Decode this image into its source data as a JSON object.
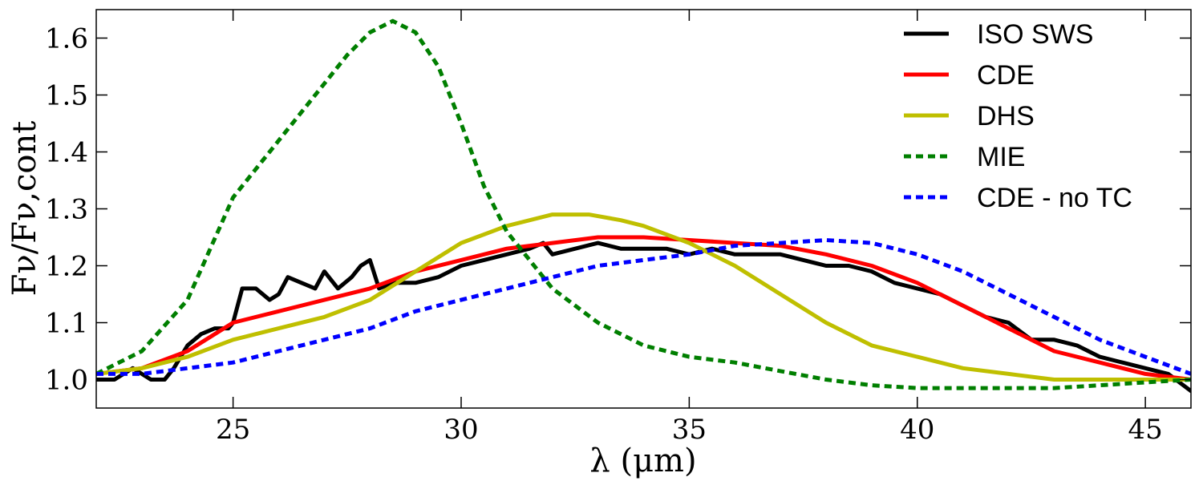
{
  "chart_data": {
    "type": "line",
    "title": "",
    "xlabel": "λ (μm)",
    "ylabel": "Fν/Fν,cont",
    "xlim": [
      22,
      46
    ],
    "ylim": [
      0.95,
      1.65
    ],
    "xticks": [
      25,
      30,
      35,
      40,
      45
    ],
    "yticks": [
      1.0,
      1.1,
      1.2,
      1.3,
      1.4,
      1.5,
      1.6
    ],
    "ytick_labels": [
      "1.0",
      "1.1",
      "1.2",
      "1.3",
      "1.4",
      "1.5",
      "1.6"
    ],
    "legend_position": "top-right",
    "series": [
      {
        "name": "ISO SWS",
        "color": "#000000",
        "style": "solid",
        "x": [
          22.0,
          22.4,
          22.8,
          23.2,
          23.5,
          23.7,
          24.0,
          24.3,
          24.6,
          24.9,
          25.0,
          25.2,
          25.5,
          25.8,
          26.0,
          26.2,
          26.5,
          26.8,
          27.0,
          27.3,
          27.6,
          27.8,
          28.0,
          28.2,
          28.5,
          28.8,
          29.0,
          29.5,
          30.0,
          30.5,
          31.0,
          31.5,
          31.8,
          32.0,
          32.5,
          33.0,
          33.5,
          34.0,
          34.5,
          35.0,
          35.5,
          36.0,
          36.5,
          37.0,
          37.5,
          38.0,
          38.5,
          39.0,
          39.5,
          40.0,
          40.5,
          41.0,
          41.5,
          42.0,
          42.5,
          43.0,
          43.5,
          44.0,
          44.5,
          45.0,
          45.5,
          46.0
        ],
        "y": [
          1.0,
          1.0,
          1.02,
          1.0,
          1.0,
          1.02,
          1.06,
          1.08,
          1.09,
          1.09,
          1.1,
          1.16,
          1.16,
          1.14,
          1.15,
          1.18,
          1.17,
          1.16,
          1.19,
          1.16,
          1.18,
          1.2,
          1.21,
          1.16,
          1.17,
          1.17,
          1.17,
          1.18,
          1.2,
          1.21,
          1.22,
          1.23,
          1.24,
          1.22,
          1.23,
          1.24,
          1.23,
          1.23,
          1.23,
          1.22,
          1.23,
          1.22,
          1.22,
          1.22,
          1.21,
          1.2,
          1.2,
          1.19,
          1.17,
          1.16,
          1.15,
          1.13,
          1.11,
          1.1,
          1.07,
          1.07,
          1.06,
          1.04,
          1.03,
          1.02,
          1.01,
          0.98
        ]
      },
      {
        "name": "CDE",
        "color": "#ff0000",
        "style": "solid",
        "x": [
          22.0,
          23.0,
          24.0,
          25.0,
          26.0,
          27.0,
          28.0,
          29.0,
          30.0,
          31.0,
          32.0,
          33.0,
          34.0,
          35.0,
          36.0,
          37.0,
          38.0,
          39.0,
          40.0,
          41.0,
          42.0,
          43.0,
          44.0,
          45.0,
          46.0
        ],
        "y": [
          1.01,
          1.02,
          1.05,
          1.1,
          1.12,
          1.14,
          1.16,
          1.19,
          1.21,
          1.23,
          1.24,
          1.25,
          1.25,
          1.245,
          1.24,
          1.235,
          1.22,
          1.2,
          1.17,
          1.13,
          1.09,
          1.05,
          1.03,
          1.01,
          1.0
        ]
      },
      {
        "name": "DHS",
        "color": "#bfbf00",
        "style": "solid",
        "x": [
          22.0,
          23.0,
          24.0,
          25.0,
          26.0,
          27.0,
          28.0,
          29.0,
          30.0,
          31.0,
          32.0,
          32.8,
          33.5,
          34.0,
          35.0,
          36.0,
          37.0,
          38.0,
          39.0,
          40.0,
          41.0,
          42.0,
          43.0,
          44.0,
          45.0,
          46.0
        ],
        "y": [
          1.01,
          1.02,
          1.04,
          1.07,
          1.09,
          1.11,
          1.14,
          1.19,
          1.24,
          1.27,
          1.29,
          1.29,
          1.28,
          1.27,
          1.24,
          1.2,
          1.15,
          1.1,
          1.06,
          1.04,
          1.02,
          1.01,
          1.0,
          1.0,
          1.0,
          1.0
        ]
      },
      {
        "name": "MIE",
        "color": "#007f00",
        "style": "dashed",
        "x": [
          22.0,
          23.0,
          24.0,
          25.0,
          26.0,
          27.0,
          27.5,
          28.0,
          28.5,
          29.0,
          29.5,
          30.0,
          30.5,
          31.0,
          32.0,
          33.0,
          34.0,
          35.0,
          36.0,
          37.0,
          38.0,
          39.0,
          40.0,
          41.0,
          42.0,
          43.0,
          44.0,
          45.0,
          46.0
        ],
        "y": [
          1.01,
          1.05,
          1.14,
          1.32,
          1.42,
          1.52,
          1.57,
          1.61,
          1.63,
          1.61,
          1.55,
          1.45,
          1.34,
          1.26,
          1.16,
          1.1,
          1.06,
          1.04,
          1.03,
          1.015,
          1.0,
          0.99,
          0.985,
          0.985,
          0.985,
          0.985,
          0.99,
          0.995,
          1.0
        ]
      },
      {
        "name": "CDE - no TC",
        "color": "#0000ff",
        "style": "dashed",
        "x": [
          22.0,
          23.0,
          24.0,
          25.0,
          26.0,
          27.0,
          28.0,
          29.0,
          30.0,
          31.0,
          32.0,
          33.0,
          34.0,
          35.0,
          36.0,
          37.0,
          38.0,
          39.0,
          40.0,
          41.0,
          42.0,
          43.0,
          44.0,
          45.0,
          46.0
        ],
        "y": [
          1.01,
          1.01,
          1.02,
          1.03,
          1.05,
          1.07,
          1.09,
          1.12,
          1.14,
          1.16,
          1.18,
          1.2,
          1.21,
          1.22,
          1.235,
          1.24,
          1.245,
          1.24,
          1.22,
          1.19,
          1.15,
          1.11,
          1.07,
          1.04,
          1.01
        ]
      }
    ]
  }
}
